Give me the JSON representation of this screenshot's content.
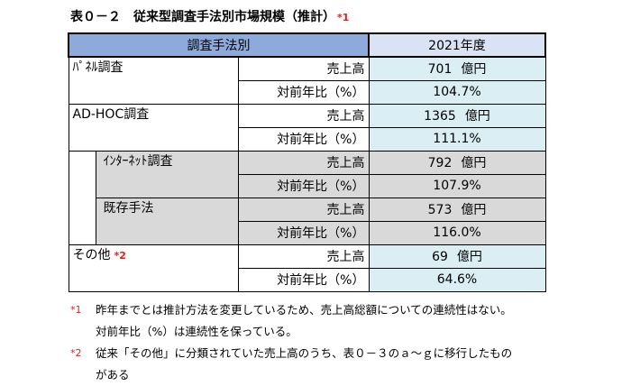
{
  "title": {
    "text": "表０－２　従来型調査手法別市場規模（推計）",
    "mark": "*1"
  },
  "table": {
    "header_method": "調査手法別",
    "header_year": "2021年度",
    "rows": [
      {
        "category": "ﾊﾟﾈﾙ調査",
        "sales_label": "売上高",
        "sales_value": "701",
        "unit": "億円",
        "ratio_label": "対前年比（%）",
        "ratio_value": "104.7%"
      },
      {
        "category": "AD-HOC調査",
        "sales_label": "売上高",
        "sales_value": "1365",
        "unit": "億円",
        "ratio_label": "対前年比（%）",
        "ratio_value": "111.1%"
      },
      {
        "category": "ｲﾝﾀｰﾈｯﾄ調査",
        "sales_label": "売上高",
        "sales_value": "792",
        "unit": "億円",
        "ratio_label": "対前年比（%）",
        "ratio_value": "107.9%"
      },
      {
        "category": "既存手法",
        "sales_label": "売上高",
        "sales_value": "573",
        "unit": "億円",
        "ratio_label": "対前年比（%）",
        "ratio_value": "116.0%"
      },
      {
        "category": "その他",
        "mark": "*2",
        "sales_label": "売上高",
        "sales_value": "69",
        "unit": "億円",
        "ratio_label": "対前年比（%）",
        "ratio_value": "64.6%"
      }
    ]
  },
  "notes": [
    {
      "mark": "*1",
      "line1": "昨年までとは推計方法を変更しているため、売上高総額についての連続性はない。",
      "line2": "対前年比（%）は連続性を保っている。"
    },
    {
      "mark": "*2",
      "line1": "従来「その他」に分類されていた売上高のうち、表０－３のａ～ｇに移行したもの",
      "line2": "がある"
    }
  ],
  "colors": {
    "header_blue": "#8eaadb",
    "value_cyan": "#daeef3",
    "sub_gray": "#d9d9d9",
    "note_red": "#e0201a"
  }
}
